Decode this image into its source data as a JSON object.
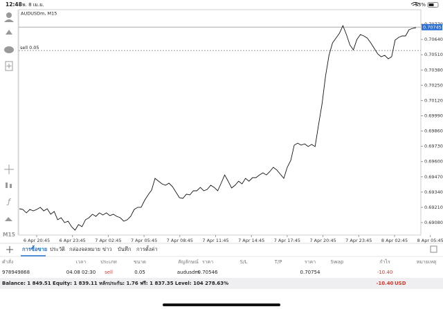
{
  "status_bar": {
    "time": "12:48",
    "date": "พ. 8 เม.ย.",
    "battery": "53%"
  },
  "chart_data": {
    "type": "line",
    "title": "AUDUSDm, M15",
    "color": "#111111",
    "values": [
      0.69198,
      0.69192,
      0.69163,
      0.69192,
      0.6918,
      0.69192,
      0.6921,
      0.6918,
      0.69198,
      0.69151,
      0.69174,
      0.69104,
      0.69121,
      0.6908,
      0.69092,
      0.69045,
      0.69015,
      0.69063,
      0.69045,
      0.69104,
      0.69121,
      0.69151,
      0.69133,
      0.69163,
      0.69145,
      0.69163,
      0.69139,
      0.69151,
      0.69133,
      0.69121,
      0.69092,
      0.69104,
      0.69133,
      0.69192,
      0.6921,
      0.6921,
      0.69269,
      0.69316,
      0.69357,
      0.69457,
      0.69433,
      0.6941,
      0.69398,
      0.69416,
      0.69386,
      0.69339,
      0.69292,
      0.69286,
      0.69322,
      0.69316,
      0.69351,
      0.69351,
      0.6938,
      0.69351,
      0.69363,
      0.69398,
      0.6938,
      0.69351,
      0.69416,
      0.69486,
      0.69433,
      0.69375,
      0.69398,
      0.69433,
      0.6941,
      0.69457,
      0.69433,
      0.69463,
      0.69463,
      0.69486,
      0.69504,
      0.69486,
      0.69516,
      0.69551,
      0.69528,
      0.69492,
      0.69457,
      0.69551,
      0.6961,
      0.6974,
      0.69757,
      0.6974,
      0.69751,
      0.69728,
      0.69746,
      0.69728,
      0.69916,
      0.70093,
      0.70328,
      0.70505,
      0.70611,
      0.70652,
      0.70693,
      0.70758,
      0.70682,
      0.70593,
      0.70552,
      0.7064,
      0.70682,
      0.7067,
      0.70652,
      0.70611,
      0.70564,
      0.70517,
      0.70493,
      0.70505,
      0.70476,
      0.70493,
      0.70635,
      0.70658,
      0.7067,
      0.7067,
      0.70723,
      0.70735,
      0.70741
    ],
    "ylim": [
      0.68974,
      0.70894
    ],
    "yticks": [
      {
        "value": 0.7077,
        "label": "0.70770"
      },
      {
        "value": 0.7064,
        "label": "0.70640"
      },
      {
        "value": 0.7051,
        "label": "0.70510"
      },
      {
        "value": 0.7038,
        "label": "0.70380"
      },
      {
        "value": 0.7025,
        "label": "0.70250"
      },
      {
        "value": 0.7012,
        "label": "0.70120"
      },
      {
        "value": 0.6999,
        "label": "0.69990"
      },
      {
        "value": 0.6986,
        "label": "0.69860"
      },
      {
        "value": 0.6973,
        "label": "0.69730"
      },
      {
        "value": 0.696,
        "label": "0.69600"
      },
      {
        "value": 0.6947,
        "label": "0.69470"
      },
      {
        "value": 0.6934,
        "label": "0.69340"
      },
      {
        "value": 0.6921,
        "label": "0.69210"
      },
      {
        "value": 0.6908,
        "label": "0.69080"
      }
    ],
    "x_labels": [
      "6 Apr 20:45",
      "6 Apr 23:45",
      "7 Apr 02:45",
      "7 Apr 05:45",
      "7 Apr 08:45",
      "7 Apr 11:45",
      "7 Apr 14:45",
      "7 Apr 17:45",
      "7 Apr 20:45",
      "7 Apr 23:45",
      "8 Apr 02:45",
      "8 Apr 05:45"
    ],
    "current_price": {
      "value": 0.70745,
      "label": "0.70745"
    },
    "order_line": {
      "value": 0.70546,
      "label": "sell 0.05"
    },
    "grid": false
  },
  "toolbar": {
    "left_bottom_label": "M15"
  },
  "tabs": [
    "การซื้อขาย",
    "ประวัติ",
    "กล่องจดหมาย",
    "ข่าว",
    "บันทึก",
    "การตั้งค่า"
  ],
  "trade_table": {
    "columns": [
      "คำสั่ง",
      "เวลา",
      "ประเภท",
      "ขนาด",
      "สัญลักษณ์",
      "ราคา",
      "S/L",
      "T/P",
      "ราคา",
      "Swap",
      "กำไร",
      "หมายเหตุ"
    ],
    "row": {
      "order": "978949868",
      "time": "04.08 02:30",
      "type": "sell",
      "volume": "0.05",
      "symbol": "audusdm",
      "open_price": "0.70546",
      "current_price": "0.70754",
      "profit": "-10.40"
    },
    "summary": "Balance: 1 849.51 Equity: 1 839.11 หลักประกัน: 1.76 ฟรี: 1 837.35 Level: 104 278.63%",
    "summary_profit": "-10.40",
    "currency": "USD"
  }
}
